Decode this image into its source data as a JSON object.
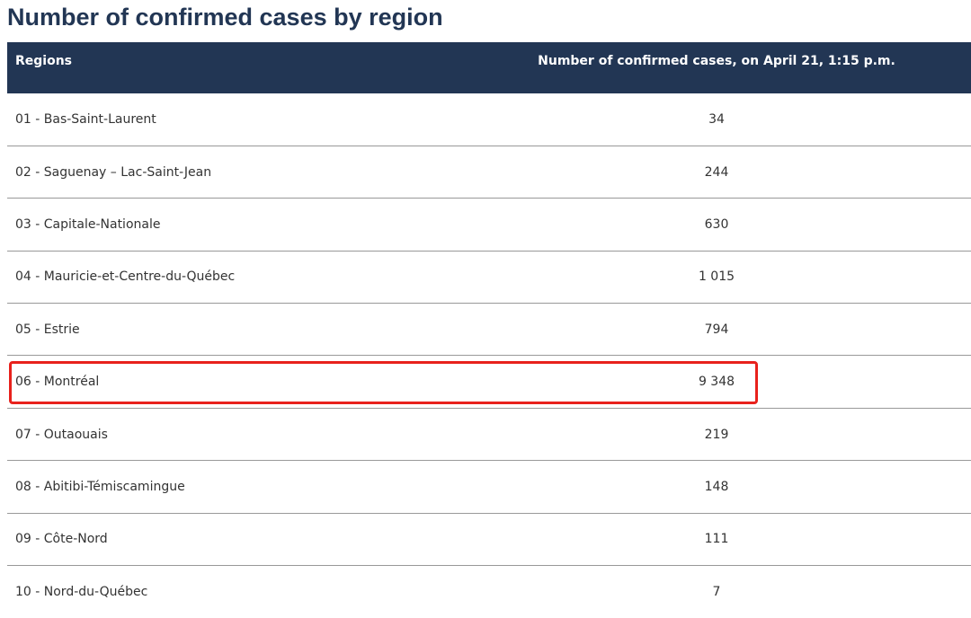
{
  "header": {
    "title": "Number of confirmed cases by region"
  },
  "table": {
    "columns": [
      "Regions",
      "Number of confirmed cases, on April 21, 1:15 p.m."
    ],
    "rows": [
      [
        "01 - Bas-Saint-Laurent",
        "34"
      ],
      [
        "02 - Saguenay – Lac-Saint-Jean",
        "244"
      ],
      [
        "03 - Capitale-Nationale",
        "630"
      ],
      [
        "04 - Mauricie-et-Centre-du-Québec",
        "1 015"
      ],
      [
        "05 - Estrie",
        "794"
      ],
      [
        "06 - Montréal",
        "9 348"
      ],
      [
        "07 - Outaouais",
        "219"
      ],
      [
        "08 - Abitibi-Témiscamingue",
        "148"
      ],
      [
        "09 - Côte-Nord",
        "111"
      ],
      [
        "10 - Nord-du-Québec",
        "7"
      ]
    ]
  }
}
